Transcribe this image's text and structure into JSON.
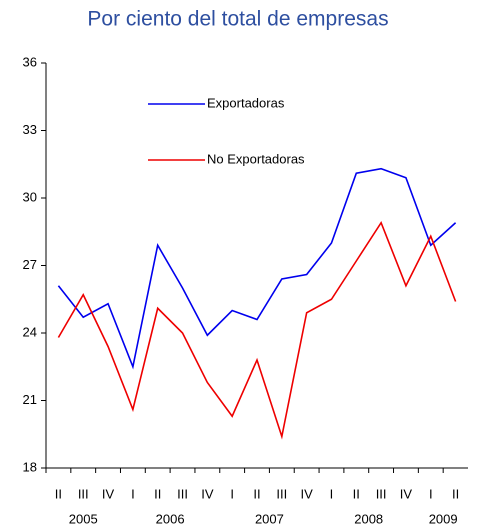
{
  "chart_data": {
    "type": "line",
    "title": "Por ciento del total de empresas",
    "category_groups": [
      {
        "label": "2005",
        "categories": [
          "II",
          "III",
          "IV"
        ]
      },
      {
        "label": "2006",
        "categories": [
          "I",
          "II",
          "III",
          "IV"
        ]
      },
      {
        "label": "2007",
        "categories": [
          "I",
          "II",
          "III",
          "IV"
        ]
      },
      {
        "label": "2008",
        "categories": [
          "I",
          "II",
          "III",
          "IV"
        ]
      },
      {
        "label": "2009",
        "categories": [
          "I",
          "II"
        ]
      }
    ],
    "series": [
      {
        "name": "Exportadoras",
        "color": "#0000ee",
        "values": [
          26.1,
          24.7,
          25.3,
          22.5,
          27.9,
          26.0,
          23.9,
          25.0,
          24.6,
          26.4,
          26.6,
          28.0,
          31.1,
          31.3,
          30.9,
          27.9,
          28.9
        ]
      },
      {
        "name": "No Exportadoras",
        "color": "#ee0000",
        "values": [
          23.8,
          25.7,
          23.4,
          20.6,
          25.1,
          24.0,
          21.8,
          20.3,
          22.8,
          19.4,
          24.9,
          25.5,
          27.2,
          28.9,
          26.1,
          28.3,
          25.4
        ]
      }
    ],
    "ylim": [
      18,
      36
    ],
    "yticks": [
      18,
      21,
      24,
      27,
      30,
      33,
      36
    ]
  }
}
